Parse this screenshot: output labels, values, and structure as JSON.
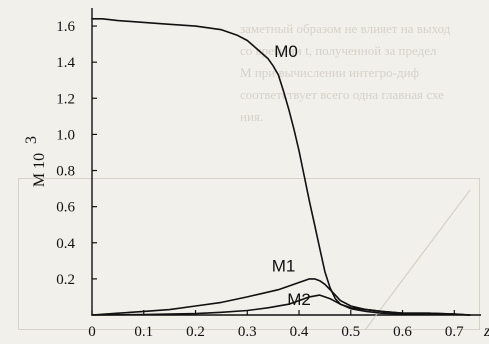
{
  "chart_data": {
    "type": "line",
    "title": "",
    "xlabel": "z",
    "ylabel": "M  10",
    "ylabel_exponent": "3",
    "xlim": [
      0,
      0.74
    ],
    "ylim": [
      0,
      1.7
    ],
    "x_ticks": [
      "0",
      "0.1",
      "0.2",
      "0.3",
      "0.4",
      "0.5",
      "0.6",
      "0.7"
    ],
    "y_ticks": [
      "0.2",
      "0.4",
      "0.6",
      "0.8",
      "1.0",
      "1.2",
      "1.4",
      "1.6"
    ],
    "grid": false,
    "series": [
      {
        "name": "M0",
        "color": "#111111",
        "x": [
          0,
          0.02,
          0.05,
          0.1,
          0.15,
          0.2,
          0.25,
          0.28,
          0.3,
          0.32,
          0.34,
          0.35,
          0.36,
          0.37,
          0.38,
          0.39,
          0.4,
          0.41,
          0.42,
          0.43,
          0.44,
          0.45,
          0.46,
          0.47,
          0.48,
          0.5,
          0.53,
          0.56,
          0.6,
          0.65,
          0.7,
          0.73
        ],
        "y": [
          1.64,
          1.64,
          1.63,
          1.62,
          1.61,
          1.6,
          1.58,
          1.55,
          1.52,
          1.47,
          1.42,
          1.38,
          1.33,
          1.24,
          1.14,
          1.03,
          0.91,
          0.77,
          0.63,
          0.5,
          0.37,
          0.24,
          0.15,
          0.09,
          0.06,
          0.04,
          0.03,
          0.02,
          0.01,
          0.01,
          0.005,
          0.0
        ]
      },
      {
        "name": "M1",
        "color": "#111111",
        "x": [
          0,
          0.05,
          0.1,
          0.15,
          0.2,
          0.25,
          0.3,
          0.33,
          0.36,
          0.38,
          0.4,
          0.42,
          0.43,
          0.44,
          0.45,
          0.46,
          0.47,
          0.48,
          0.5,
          0.53,
          0.56,
          0.6,
          0.65,
          0.7,
          0.73
        ],
        "y": [
          0.0,
          0.01,
          0.02,
          0.03,
          0.05,
          0.07,
          0.1,
          0.12,
          0.14,
          0.16,
          0.18,
          0.2,
          0.2,
          0.19,
          0.17,
          0.14,
          0.11,
          0.08,
          0.05,
          0.03,
          0.02,
          0.01,
          0.01,
          0.005,
          0.0
        ]
      },
      {
        "name": "M2",
        "color": "#111111",
        "x": [
          0,
          0.1,
          0.2,
          0.25,
          0.3,
          0.34,
          0.38,
          0.4,
          0.42,
          0.44,
          0.45,
          0.46,
          0.48,
          0.5,
          0.53,
          0.56,
          0.6,
          0.65,
          0.7,
          0.73
        ],
        "y": [
          0.0,
          0.003,
          0.008,
          0.015,
          0.025,
          0.04,
          0.06,
          0.08,
          0.1,
          0.11,
          0.1,
          0.09,
          0.06,
          0.035,
          0.02,
          0.01,
          0.005,
          0.003,
          0.002,
          0.0
        ]
      }
    ]
  }
}
